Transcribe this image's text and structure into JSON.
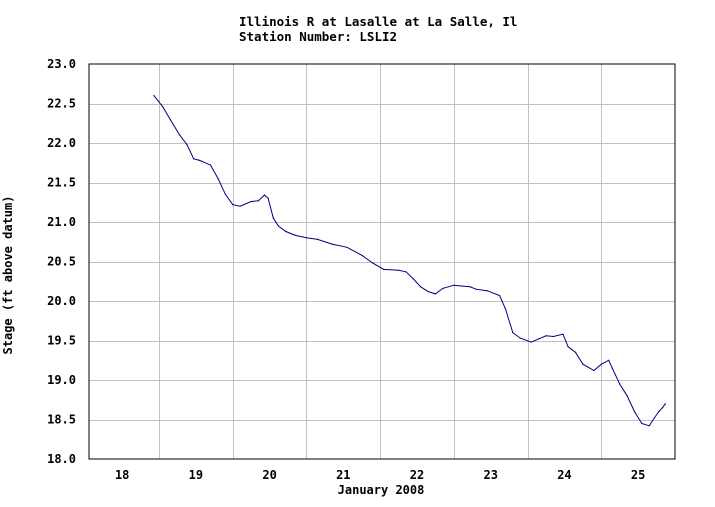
{
  "chart_data": {
    "type": "line",
    "title": "Illinois R at Lasalle at La Salle, Il",
    "subtitle": "Station Number: LSLI2",
    "xlabel": "January 2008",
    "ylabel": "Stage (ft above datum)",
    "xlim": [
      17.55,
      25.5
    ],
    "ylim": [
      18.0,
      23.0
    ],
    "x_ticks": [
      18,
      19,
      20,
      21,
      22,
      23,
      24,
      25
    ],
    "x_tick_labels": [
      "18",
      "19",
      "20",
      "21",
      "22",
      "23",
      "24",
      "25"
    ],
    "y_ticks": [
      18.0,
      18.5,
      19.0,
      19.5,
      20.0,
      20.5,
      21.0,
      21.5,
      22.0,
      22.5,
      23.0
    ],
    "y_tick_labels": [
      "18.0",
      "18.5",
      "19.0",
      "19.5",
      "20.0",
      "20.5",
      "21.0",
      "21.5",
      "22.0",
      "22.5",
      "23.0"
    ],
    "grid": true,
    "colors": {
      "line": "#000080",
      "grid": "#c0c0c0",
      "frame": "#000000"
    },
    "series": [
      {
        "values": [
          [
            18.43,
            22.6
          ],
          [
            18.55,
            22.46
          ],
          [
            18.65,
            22.3
          ],
          [
            18.78,
            22.1
          ],
          [
            18.88,
            21.98
          ],
          [
            18.97,
            21.8
          ],
          [
            19.05,
            21.78
          ],
          [
            19.2,
            21.72
          ],
          [
            19.3,
            21.55
          ],
          [
            19.4,
            21.35
          ],
          [
            19.5,
            21.22
          ],
          [
            19.6,
            21.2
          ],
          [
            19.75,
            21.26
          ],
          [
            19.85,
            21.27
          ],
          [
            19.93,
            21.34
          ],
          [
            19.98,
            21.3
          ],
          [
            20.05,
            21.05
          ],
          [
            20.12,
            20.95
          ],
          [
            20.22,
            20.88
          ],
          [
            20.35,
            20.83
          ],
          [
            20.5,
            20.8
          ],
          [
            20.65,
            20.78
          ],
          [
            20.85,
            20.72
          ],
          [
            21.05,
            20.68
          ],
          [
            21.25,
            20.58
          ],
          [
            21.4,
            20.48
          ],
          [
            21.55,
            20.4
          ],
          [
            21.75,
            20.39
          ],
          [
            21.85,
            20.37
          ],
          [
            21.95,
            20.28
          ],
          [
            22.05,
            20.18
          ],
          [
            22.15,
            20.12
          ],
          [
            22.25,
            20.09
          ],
          [
            22.35,
            20.16
          ],
          [
            22.5,
            20.2
          ],
          [
            22.6,
            20.19
          ],
          [
            22.72,
            20.18
          ],
          [
            22.8,
            20.15
          ],
          [
            22.95,
            20.13
          ],
          [
            23.12,
            20.07
          ],
          [
            23.2,
            19.9
          ],
          [
            23.3,
            19.6
          ],
          [
            23.4,
            19.53
          ],
          [
            23.55,
            19.48
          ],
          [
            23.65,
            19.52
          ],
          [
            23.75,
            19.56
          ],
          [
            23.85,
            19.55
          ],
          [
            23.98,
            19.58
          ],
          [
            24.05,
            19.42
          ],
          [
            24.15,
            19.35
          ],
          [
            24.25,
            19.2
          ],
          [
            24.4,
            19.12
          ],
          [
            24.5,
            19.2
          ],
          [
            24.6,
            19.25
          ],
          [
            24.65,
            19.15
          ],
          [
            24.75,
            18.95
          ],
          [
            24.85,
            18.8
          ],
          [
            24.95,
            18.6
          ],
          [
            25.05,
            18.45
          ],
          [
            25.15,
            18.42
          ],
          [
            25.22,
            18.52
          ],
          [
            25.28,
            18.6
          ],
          [
            25.33,
            18.65
          ],
          [
            25.37,
            18.7
          ]
        ]
      }
    ]
  }
}
